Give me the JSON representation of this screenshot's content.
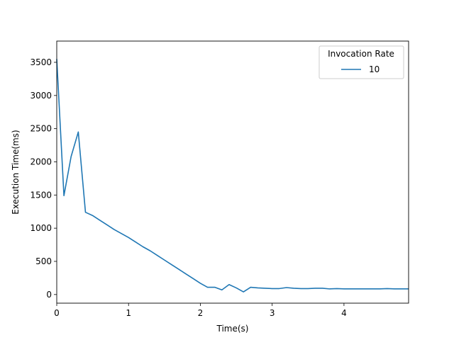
{
  "chart_data": {
    "type": "line",
    "xlabel": "Time(s)",
    "ylabel": "Execution Time(ms)",
    "xlim": [
      0,
      4.9
    ],
    "ylim": [
      -130,
      3820
    ],
    "xticks": [
      0,
      1,
      2,
      3,
      4
    ],
    "xtick_labels": [
      "0",
      "1",
      "2",
      "3",
      "4"
    ],
    "yticks": [
      0,
      500,
      1000,
      1500,
      2000,
      2500,
      3000,
      3500
    ],
    "ytick_labels": [
      "0",
      "500",
      "1000",
      "1500",
      "2000",
      "2500",
      "3000",
      "3500"
    ],
    "grid": false,
    "legend": {
      "title": "Invocation Rate",
      "placement": "top-right"
    },
    "series": [
      {
        "name": "10",
        "color": "#1f77b4",
        "x": [
          0,
          0.1,
          0.2,
          0.3,
          0.4,
          0.5,
          0.6,
          0.7,
          0.8,
          0.9,
          1.0,
          1.1,
          1.2,
          1.3,
          1.4,
          1.5,
          1.6,
          1.7,
          1.8,
          1.9,
          2.0,
          2.1,
          2.2,
          2.3,
          2.4,
          2.5,
          2.6,
          2.7,
          2.8,
          2.9,
          3.0,
          3.1,
          3.2,
          3.3,
          3.4,
          3.5,
          3.6,
          3.7,
          3.8,
          3.9,
          4.0,
          4.1,
          4.2,
          4.3,
          4.4,
          4.5,
          4.6,
          4.7,
          4.8,
          4.9
        ],
        "y": [
          3550,
          1490,
          2080,
          2450,
          1240,
          1190,
          1120,
          1050,
          980,
          920,
          860,
          790,
          720,
          660,
          590,
          520,
          450,
          380,
          310,
          240,
          170,
          110,
          110,
          70,
          150,
          100,
          40,
          110,
          100,
          95,
          90,
          90,
          105,
          95,
          90,
          90,
          95,
          95,
          85,
          90,
          85,
          85,
          85,
          85,
          85,
          85,
          90,
          85,
          85,
          85
        ]
      }
    ]
  }
}
